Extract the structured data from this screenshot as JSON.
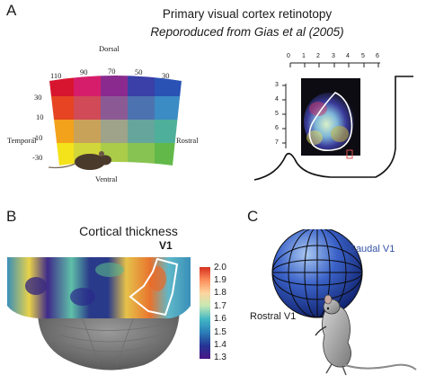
{
  "panels": {
    "A": {
      "letter": "A",
      "title": "Primary visual cortex retinotopy",
      "subtitle": "Reporoduced from Gias et al (2005)",
      "map": {
        "dorsal": "Dorsal",
        "ventral": "Ventral",
        "temporal": "Temporal",
        "rostral": "Rostral",
        "azimuth_ticks": [
          "110",
          "90",
          "70",
          "50",
          "30"
        ],
        "elevation_ticks": [
          "30",
          "10",
          "-10",
          "-30"
        ]
      },
      "cortex": {
        "top_ticks": [
          "0",
          "1",
          "2",
          "3",
          "4",
          "5",
          "6"
        ],
        "side_ticks": [
          "3",
          "4",
          "5",
          "6",
          "7"
        ]
      }
    },
    "B": {
      "letter": "B",
      "title": "Cortical thickness",
      "roi_label": "V1",
      "colorbar": {
        "ticks": [
          "2.0",
          "1.9",
          "1.8",
          "1.7",
          "1.6",
          "1.5",
          "1.4",
          "1.3"
        ],
        "colors": [
          "#d7301f",
          "#fc8d59",
          "#fdd49e",
          "#c7e9b4",
          "#41b6c4",
          "#2c7fb8",
          "#253494",
          "#4a1486"
        ]
      }
    },
    "C": {
      "letter": "C",
      "caudal_label": "Caudal V1",
      "rostral_label": "Rostral V1"
    }
  }
}
